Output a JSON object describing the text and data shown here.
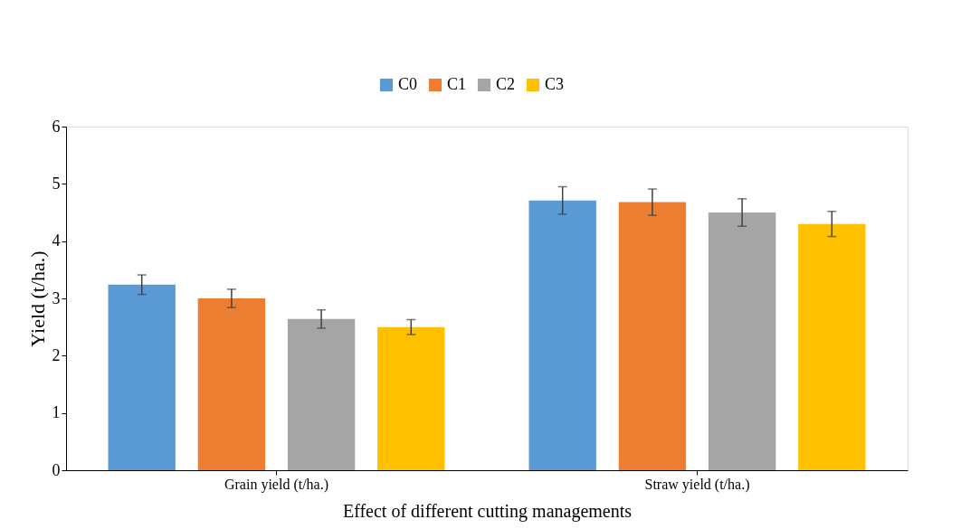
{
  "chart_data": {
    "type": "bar",
    "xlabel": "Effect of different cutting managements",
    "ylabel": "Yield (t/ha.)",
    "categories": [
      "Grain yield (t/ha.)",
      "Straw yield (t/ha.)"
    ],
    "series": [
      {
        "name": "C0",
        "color": "#5b9bd5",
        "values": [
          3.24,
          4.71
        ],
        "errors": [
          0.17,
          0.24
        ]
      },
      {
        "name": "C1",
        "color": "#ed7d31",
        "values": [
          3.0,
          4.68
        ],
        "errors": [
          0.16,
          0.23
        ]
      },
      {
        "name": "C2",
        "color": "#a5a5a5",
        "values": [
          2.64,
          4.5
        ],
        "errors": [
          0.16,
          0.24
        ]
      },
      {
        "name": "C3",
        "color": "#ffc000",
        "values": [
          2.5,
          4.3
        ],
        "errors": [
          0.13,
          0.22
        ]
      }
    ],
    "ylim": [
      0,
      6
    ],
    "yticks": [
      0,
      1,
      2,
      3,
      4,
      5,
      6
    ],
    "grid": false,
    "legend": "top"
  }
}
